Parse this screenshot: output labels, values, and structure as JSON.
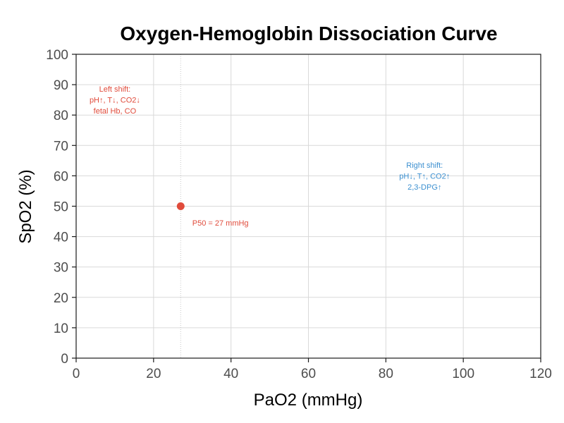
{
  "chart_data": {
    "type": "scatter",
    "title": "Oxygen-Hemoglobin Dissociation Curve",
    "xlabel": "PaO2 (mmHg)",
    "ylabel": "SpO2 (%)",
    "xlim": [
      0,
      120
    ],
    "ylim": [
      0,
      100
    ],
    "x_ticks": [
      0,
      20,
      40,
      60,
      80,
      100,
      120
    ],
    "y_ticks": [
      0,
      10,
      20,
      30,
      40,
      50,
      60,
      70,
      80,
      90,
      100
    ],
    "grid": true,
    "series": [
      {
        "points": [
          {
            "x": 27,
            "y": 50
          }
        ],
        "color": "#e04b3b"
      }
    ],
    "reference_lines": [
      {
        "axis": "x",
        "value": 27,
        "style": "dotted"
      }
    ],
    "annotations": [
      {
        "id": "p50",
        "x": 30,
        "y": 44.5,
        "align": "start",
        "color": "#e04b3b",
        "lines": [
          "P50 = 27 mmHg"
        ]
      },
      {
        "id": "left-shift",
        "x": 10,
        "y": 85,
        "align": "middle",
        "color": "#e04b3b",
        "lines": [
          "Left shift:",
          "pH↑, T↓, CO2↓",
          "fetal Hb, CO"
        ]
      },
      {
        "id": "right-shift",
        "x": 90,
        "y": 60,
        "align": "middle",
        "color": "#3b8fd0",
        "lines": [
          "Right shift:",
          "pH↓, T↑, CO2↑",
          "2,3-DPG↑"
        ]
      }
    ]
  }
}
